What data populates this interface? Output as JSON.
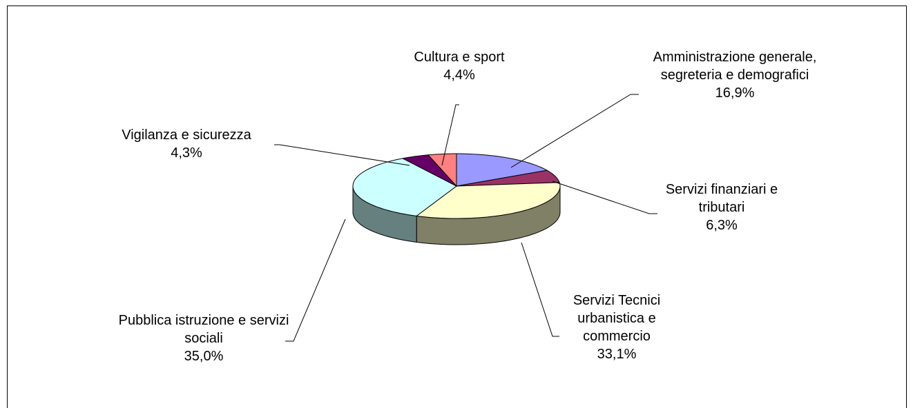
{
  "chart_data": {
    "type": "pie3d",
    "categories": [
      "Amministrazione generale, segreteria e demografici",
      "Servizi finanziari e tributari",
      "Servizi Tecnici urbanistica e commercio",
      "Pubblica istruzione e servizi sociali",
      "Vigilanza e sicurezza",
      "Cultura e sport"
    ],
    "values": [
      16.9,
      6.3,
      33.1,
      35.0,
      4.3,
      4.4
    ],
    "value_labels": [
      "16,9%",
      "6,3%",
      "33,1%",
      "35,0%",
      "4,3%",
      "4,4%"
    ],
    "colors": [
      "#9999ff",
      "#993366",
      "#ffffcc",
      "#ccffff",
      "#660066",
      "#ff8080"
    ]
  }
}
